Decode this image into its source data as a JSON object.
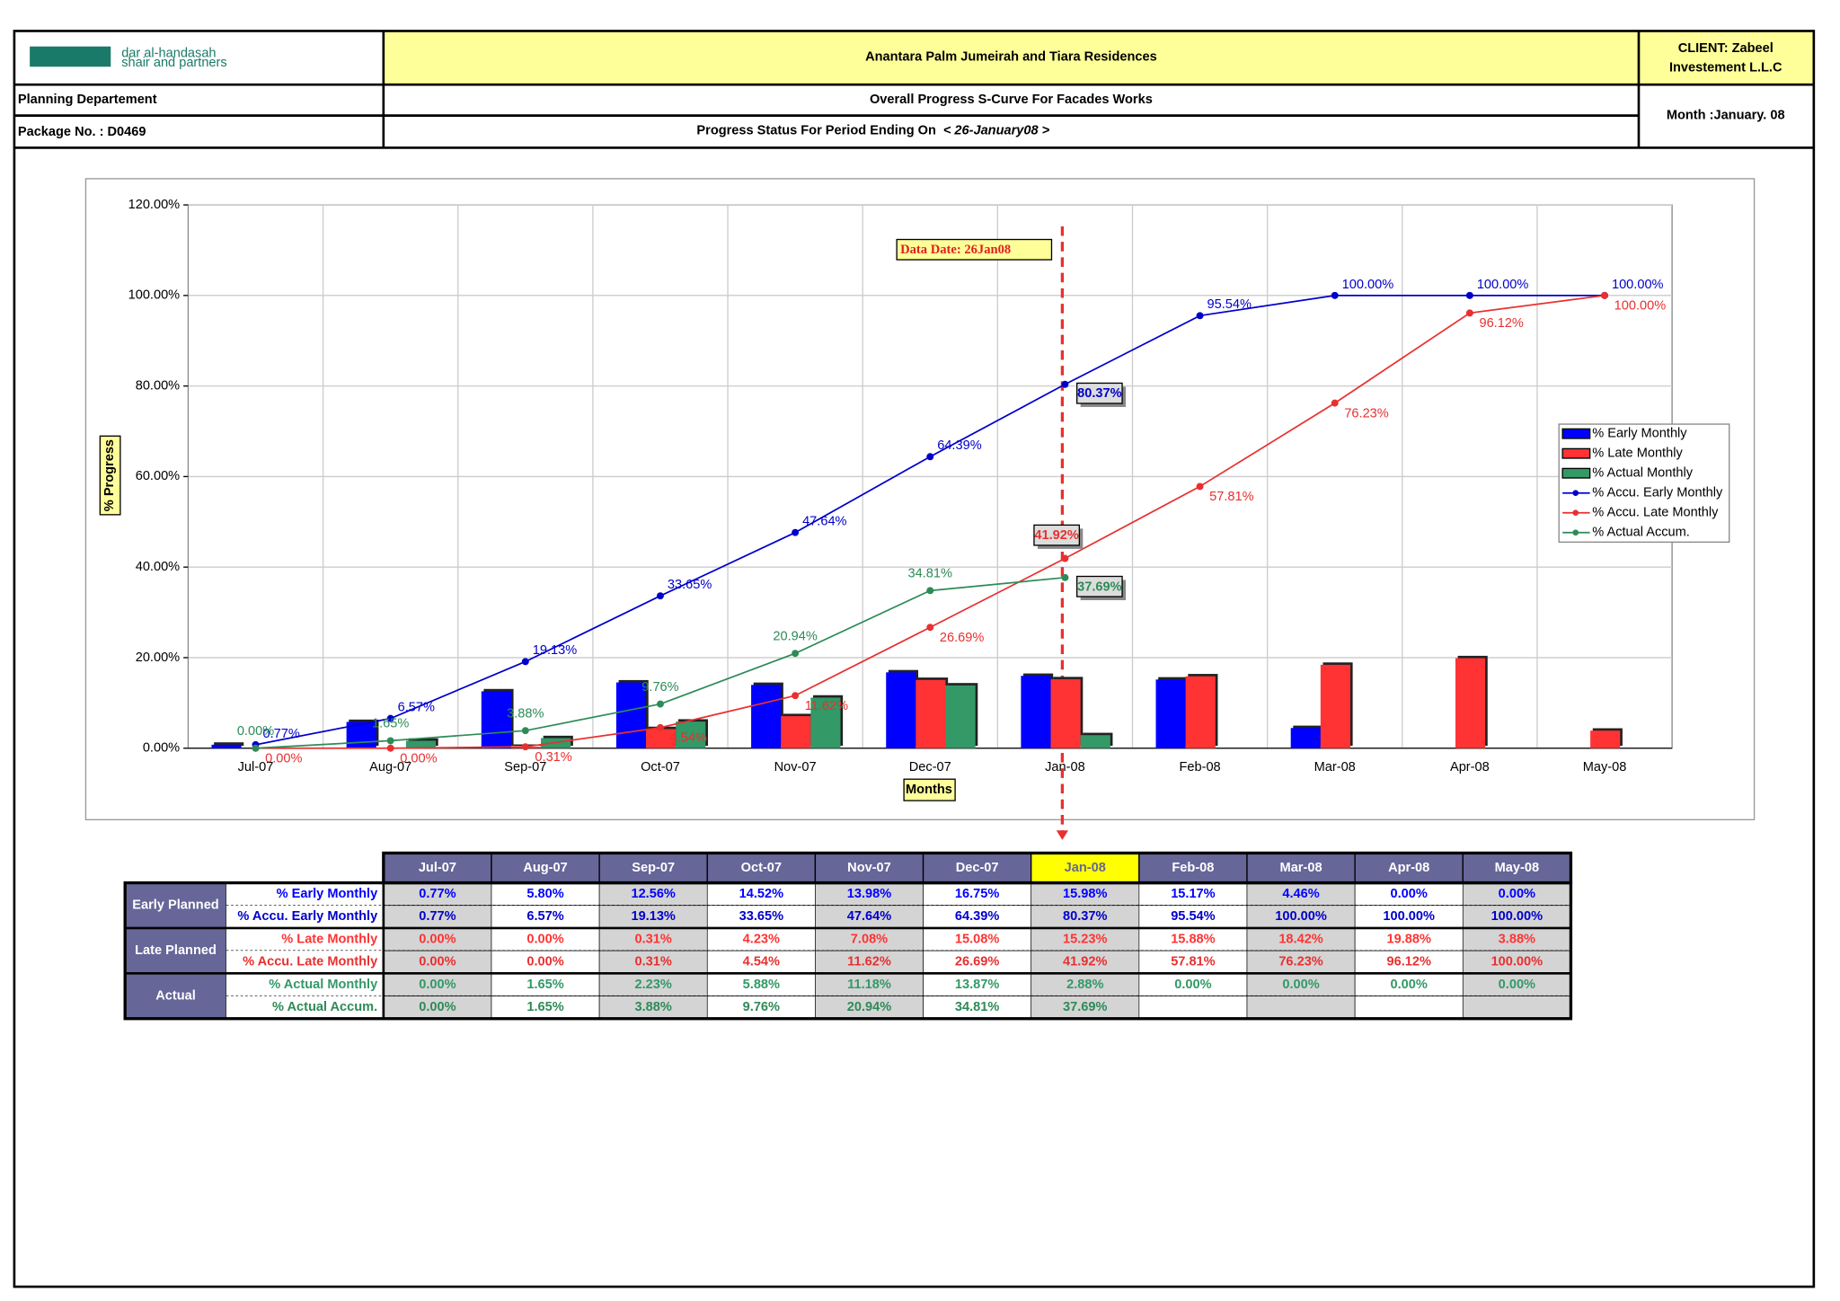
{
  "header": {
    "logo": "dar al-handasah",
    "logo_sub": "shair and partners",
    "title": "Anantara Palm Jumeirah and Tiara Residences",
    "client": [
      "CLIENT: Zabeel",
      "Investement L.L.C"
    ],
    "department": "Planning Departement",
    "subtitle": "Overall Progress S-Curve For Facades Works",
    "package": "Package No. : D0469",
    "status": "Progress Status For Period Ending On",
    "period": "< 26-January08 >",
    "month": "Month :January.  08"
  },
  "chart_data": {
    "type": "combo",
    "y_label": "% Progress",
    "x_label": "Months",
    "annotation": "Data Date: 26Jan08",
    "grid": true,
    "categories": [
      "Jul-07",
      "Aug-07",
      "Sep-07",
      "Oct-07",
      "Nov-07",
      "Dec-07",
      "Jan-08",
      "Feb-08",
      "Mar-08",
      "Apr-08",
      "May-08"
    ],
    "ylim": [
      0,
      120
    ],
    "yticks": [
      {
        "value": 0,
        "label": "0.00%"
      },
      {
        "value": 20,
        "label": "20.00%"
      },
      {
        "value": 40,
        "label": "40.00%"
      },
      {
        "value": 60,
        "label": "60.00%"
      },
      {
        "value": 80,
        "label": "80.00%"
      },
      {
        "value": 100,
        "label": "100.00%"
      },
      {
        "value": 120,
        "label": "120.00%"
      }
    ],
    "series": [
      {
        "name": "% Early Monthly",
        "kind": "bar",
        "color": "#0000ff",
        "values": [
          0.77,
          5.8,
          12.56,
          14.52,
          13.98,
          16.75,
          15.98,
          15.17,
          4.46,
          0,
          0
        ],
        "value_labels": [
          "0.77%",
          "5.80%",
          "12.56%",
          "14.52%",
          "13.98%",
          "16.75%",
          "15.98%",
          "15.17%",
          "4.46%",
          "0.00%",
          "0.00%"
        ]
      },
      {
        "name": "% Accu. Early Monthly",
        "kind": "line",
        "color": "#0000cc",
        "values": [
          0.77,
          6.57,
          19.13,
          33.65,
          47.64,
          64.39,
          80.37,
          95.54,
          100,
          100,
          100
        ],
        "value_labels": [
          "0.77%",
          "6.57%",
          "19.13%",
          "33.65%",
          "47.64%",
          "64.39%",
          "80.37%",
          "95.54%",
          "100.00%",
          "100.00%",
          "100.00%"
        ]
      },
      {
        "name": "% Late Monthly",
        "kind": "bar",
        "color": "#ff3333",
        "values": [
          0,
          0,
          0.31,
          4.23,
          7.08,
          15.08,
          15.23,
          15.88,
          18.42,
          19.88,
          3.88
        ],
        "value_labels": [
          "0.00%",
          "0.00%",
          "0.31%",
          "4.23%",
          "7.08%",
          "15.08%",
          "15.23%",
          "15.88%",
          "18.42%",
          "19.88%",
          "3.88%"
        ]
      },
      {
        "name": "% Accu. Late Monthly",
        "kind": "line",
        "color": "#e83030",
        "values": [
          0,
          0,
          0.31,
          4.54,
          11.62,
          26.69,
          41.92,
          57.81,
          76.23,
          96.12,
          100
        ],
        "value_labels": [
          "0.00%",
          "0.00%",
          "0.31%",
          "4.54%",
          "11.62%",
          "26.69%",
          "41.92%",
          "57.81%",
          "76.23%",
          "96.12%",
          "100.00%"
        ]
      },
      {
        "name": "% Actual Monthly",
        "kind": "bar",
        "color": "#339966",
        "values": [
          0,
          1.65,
          2.23,
          5.88,
          11.18,
          13.87,
          2.88,
          0,
          0,
          0,
          0
        ],
        "value_labels": [
          "0.00%",
          "1.65%",
          "2.23%",
          "5.88%",
          "11.18%",
          "13.87%",
          "2.88%",
          "0.00%",
          "0.00%",
          "0.00%",
          "0.00%"
        ]
      },
      {
        "name": "% Actual Accum.",
        "kind": "line",
        "color": "#2e8b57",
        "values": [
          0,
          1.65,
          3.88,
          9.76,
          20.94,
          34.81,
          37.69,
          null,
          null,
          null,
          null
        ],
        "value_labels": [
          "0.00%",
          "1.65%",
          "3.88%",
          "9.76%",
          "20.94%",
          "34.81%",
          "37.69%",
          null,
          null,
          null,
          null
        ]
      }
    ]
  },
  "table": {
    "groups": [
      "Early Planned",
      "Late Planned",
      "Actual"
    ]
  }
}
